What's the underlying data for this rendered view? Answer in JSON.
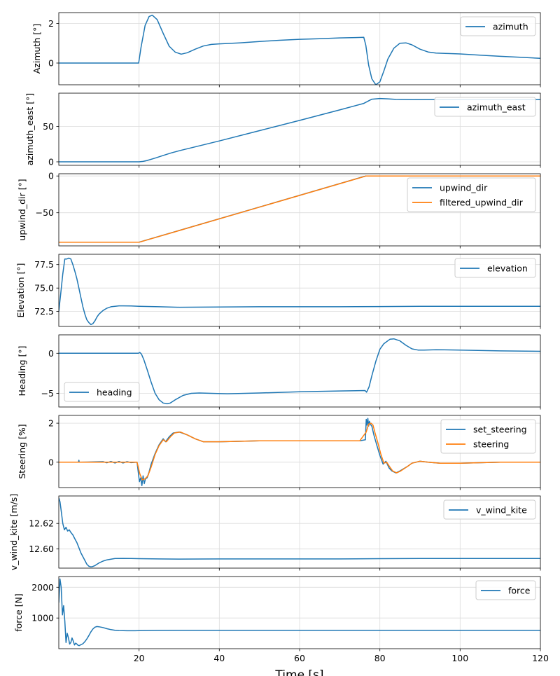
{
  "xlabel": "Time [s]",
  "x_ticks": [
    "20",
    "40",
    "60",
    "80",
    "100",
    "120"
  ],
  "chart_data": [
    {
      "type": "line",
      "ylabel": "Azimuth [°]",
      "xlim": [
        0,
        120
      ],
      "ylim": [
        -1.1,
        2.55
      ],
      "yticks": [
        0,
        2
      ],
      "ytick_labels": [
        "0",
        "2"
      ],
      "legend": "top-right",
      "grid": true,
      "series": [
        {
          "name": "azimuth",
          "color": "#1f77b4",
          "x": [
            0,
            19.9,
            20.5,
            21.5,
            22.5,
            23.3,
            24.5,
            26,
            27.5,
            29,
            30.5,
            32,
            34,
            36,
            38,
            40,
            45,
            50,
            55,
            60,
            65,
            70,
            74,
            76,
            76.5,
            77.2,
            78,
            79,
            80,
            81,
            82,
            83.5,
            85,
            86.5,
            88,
            90,
            92,
            94,
            97,
            100,
            105,
            110,
            115,
            120
          ],
          "y": [
            0,
            0,
            0.8,
            1.9,
            2.35,
            2.42,
            2.2,
            1.5,
            0.85,
            0.55,
            0.45,
            0.52,
            0.7,
            0.86,
            0.94,
            0.97,
            1.02,
            1.09,
            1.15,
            1.2,
            1.23,
            1.27,
            1.29,
            1.3,
            0.9,
            -0.1,
            -0.8,
            -1.1,
            -0.95,
            -0.4,
            0.2,
            0.75,
            1.0,
            1.02,
            0.92,
            0.7,
            0.56,
            0.5,
            0.48,
            0.46,
            0.4,
            0.34,
            0.29,
            0.24
          ]
        }
      ]
    },
    {
      "type": "line",
      "ylabel": "azimuth_east [°]",
      "xlim": [
        0,
        120
      ],
      "ylim": [
        -5,
        97
      ],
      "yticks": [
        0,
        50
      ],
      "ytick_labels": [
        "0",
        "50"
      ],
      "legend": "top-right",
      "grid": true,
      "series": [
        {
          "name": "azimuth_east",
          "color": "#1f77b4",
          "x": [
            0,
            20,
            21,
            22,
            24,
            26,
            28,
            30,
            35,
            40,
            50,
            60,
            70,
            76,
            78,
            80,
            82,
            84,
            88,
            100,
            120
          ],
          "y": [
            0,
            0,
            0.5,
            1.8,
            5.2,
            9,
            12.5,
            15.6,
            22.5,
            29.5,
            44,
            58.5,
            73.3,
            82.5,
            88.5,
            89.5,
            89,
            88.2,
            87.8,
            88,
            88
          ]
        }
      ]
    },
    {
      "type": "line",
      "ylabel": "upwind_dir [°]",
      "xlim": [
        0,
        120
      ],
      "ylim": [
        -95,
        3
      ],
      "yticks": [
        0,
        -50
      ],
      "ytick_labels": [
        "0",
        "−50"
      ],
      "legend": "top-right",
      "grid": true,
      "series": [
        {
          "name": "upwind_dir",
          "color": "#1f77b4",
          "x": [
            0,
            20,
            76.5,
            120
          ],
          "y": [
            -90,
            -90,
            0,
            0
          ]
        },
        {
          "name": "filtered_upwind_dir",
          "color": "#ff7f0e",
          "x": [
            0,
            20.1,
            76.6,
            120
          ],
          "y": [
            -90,
            -90,
            0,
            0
          ]
        }
      ]
    },
    {
      "type": "line",
      "ylabel": "Elevation [°]",
      "xlim": [
        0,
        120
      ],
      "ylim": [
        70.9,
        78.6
      ],
      "yticks": [
        72.5,
        75.0,
        77.5
      ],
      "ytick_labels": [
        "72.5",
        "75.0",
        "77.5"
      ],
      "legend": "top-right",
      "grid": true,
      "series": [
        {
          "name": "elevation",
          "color": "#1f77b4",
          "x": [
            0,
            0.5,
            1,
            1.5,
            2,
            2.5,
            3,
            3.5,
            4,
            4.5,
            5,
            5.5,
            6,
            6.5,
            7,
            7.5,
            8,
            8.5,
            9,
            9.5,
            10,
            11,
            12,
            13,
            14,
            15,
            16,
            18,
            20,
            25,
            30,
            40,
            50,
            60,
            70,
            80,
            90,
            100,
            110,
            120
          ],
          "y": [
            72.5,
            74.5,
            76.5,
            78.1,
            78.1,
            78.2,
            78.1,
            77.5,
            76.8,
            76,
            75.0,
            74.0,
            73.0,
            72.2,
            71.6,
            71.3,
            71.1,
            71.2,
            71.5,
            71.9,
            72.2,
            72.6,
            72.85,
            73.0,
            73.05,
            73.1,
            73.1,
            73.08,
            73.05,
            73.0,
            72.95,
            72.98,
            73.0,
            73.0,
            73.0,
            73.02,
            73.05,
            73.05,
            73.05,
            73.05
          ]
        }
      ]
    },
    {
      "type": "line",
      "ylabel": "Heading [°]",
      "xlim": [
        0,
        120
      ],
      "ylim": [
        -6.7,
        2.3
      ],
      "yticks": [
        0,
        -5
      ],
      "ytick_labels": [
        "0",
        "−5"
      ],
      "legend": "bottom-left",
      "grid": true,
      "series": [
        {
          "name": "heading",
          "color": "#1f77b4",
          "x": [
            0,
            19.8,
            20.2,
            20.6,
            21.2,
            22,
            23,
            24,
            25,
            26,
            27,
            27.8,
            29,
            31,
            33,
            35,
            38,
            42,
            50,
            60,
            70,
            76.3,
            76.7,
            77.3,
            78,
            79,
            80,
            81,
            82.5,
            83.5,
            85,
            86.5,
            88,
            89.5,
            91,
            94,
            100,
            110,
            120
          ],
          "y": [
            0,
            0,
            0.1,
            -0.1,
            -0.8,
            -2.0,
            -3.6,
            -5.0,
            -5.8,
            -6.2,
            -6.3,
            -6.2,
            -5.8,
            -5.25,
            -5.0,
            -4.95,
            -5.0,
            -5.05,
            -4.95,
            -4.8,
            -4.7,
            -4.65,
            -4.85,
            -4.2,
            -2.8,
            -1.0,
            0.5,
            1.2,
            1.75,
            1.8,
            1.55,
            1.0,
            0.55,
            0.4,
            0.4,
            0.45,
            0.4,
            0.3,
            0.25
          ]
        }
      ]
    },
    {
      "type": "line",
      "ylabel": "Steering [%]",
      "xlim": [
        0,
        120
      ],
      "ylim": [
        -1.3,
        2.4
      ],
      "yticks": [
        0,
        2
      ],
      "ytick_labels": [
        "0",
        "2"
      ],
      "legend": "top-right",
      "grid": true,
      "series": [
        {
          "name": "set_steering",
          "color": "#1f77b4",
          "x": [
            0,
            4.9,
            5.0,
            5.1,
            11,
            12,
            13,
            14,
            15,
            16,
            17,
            18,
            19.5,
            20.1,
            20.4,
            20.7,
            21,
            21.3,
            21.6,
            22,
            22.5,
            23,
            24,
            25,
            26,
            26.6,
            27.5,
            28.5,
            30,
            32,
            34,
            36,
            40,
            50,
            60,
            70,
            75,
            76.4,
            76.6,
            76.8,
            77.0,
            77.2,
            77.4,
            77.6,
            78,
            78.5,
            79.2,
            80,
            80.8,
            81.5,
            82.3,
            83,
            84,
            85,
            87,
            88,
            89,
            90,
            92,
            95,
            100,
            110,
            120
          ],
          "y": [
            0,
            0,
            0.1,
            0,
            0.03,
            -0.03,
            0.04,
            -0.04,
            0.04,
            -0.04,
            0.03,
            -0.02,
            0,
            -1.0,
            -0.8,
            -1.2,
            -0.7,
            -1.1,
            -0.85,
            -0.8,
            -0.5,
            -0.1,
            0.45,
            0.9,
            1.2,
            1.05,
            1.3,
            1.5,
            1.55,
            1.4,
            1.2,
            1.05,
            1.05,
            1.1,
            1.1,
            1.1,
            1.1,
            1.15,
            2.2,
            1.9,
            2.25,
            1.85,
            2.1,
            1.95,
            1.85,
            1.4,
            0.9,
            0.35,
            -0.1,
            0.05,
            -0.3,
            -0.45,
            -0.55,
            -0.45,
            -0.2,
            -0.05,
            0.0,
            0.05,
            0.0,
            -0.05,
            -0.05,
            0,
            0
          ]
        },
        {
          "name": "steering",
          "color": "#ff7f0e",
          "x": [
            0,
            19.5,
            20.2,
            20.8,
            21.5,
            22.2,
            23,
            24,
            25,
            26,
            26.8,
            27.8,
            28.8,
            30.3,
            32,
            34,
            36,
            40,
            50,
            60,
            70,
            75,
            76.6,
            77.2,
            77.8,
            78.3,
            78.8,
            79.5,
            80.2,
            81,
            81.7,
            82.5,
            83.2,
            84.2,
            85.2,
            87,
            88,
            89,
            90,
            92,
            95,
            100,
            110,
            120
          ],
          "y": [
            0,
            0,
            -0.6,
            -0.9,
            -0.85,
            -0.7,
            -0.25,
            0.4,
            0.85,
            1.15,
            1.05,
            1.3,
            1.5,
            1.55,
            1.4,
            1.2,
            1.05,
            1.05,
            1.1,
            1.1,
            1.1,
            1.1,
            1.55,
            1.95,
            2.0,
            1.9,
            1.5,
            1.0,
            0.45,
            -0.05,
            0.0,
            -0.25,
            -0.45,
            -0.55,
            -0.45,
            -0.2,
            -0.05,
            0.0,
            0.05,
            0.0,
            -0.05,
            -0.05,
            0,
            0
          ]
        }
      ]
    },
    {
      "type": "line",
      "ylabel": "v_wind_kite [m/s]",
      "xlim": [
        0,
        120
      ],
      "ylim": [
        12.585,
        12.6415
      ],
      "yticks": [
        12.6,
        12.62
      ],
      "ytick_labels": [
        "12.60",
        "12.62"
      ],
      "legend": "top-right",
      "grid": true,
      "series": [
        {
          "name": "v_wind_kite",
          "color": "#1f77b4",
          "x": [
            0,
            0.3,
            0.6,
            1,
            1.4,
            1.8,
            2.2,
            2.6,
            3,
            3.5,
            4,
            4.5,
            5,
            5.5,
            6,
            6.5,
            7,
            7.5,
            8,
            8.5,
            9,
            9.5,
            10,
            11,
            12,
            13,
            14,
            16,
            18,
            20,
            25,
            30,
            40,
            50,
            60,
            70,
            80,
            90,
            100,
            110,
            120
          ],
          "y": [
            12.64,
            12.637,
            12.63,
            12.62,
            12.615,
            12.617,
            12.614,
            12.615,
            12.613,
            12.611,
            12.608,
            12.605,
            12.601,
            12.597,
            12.594,
            12.591,
            12.588,
            12.5865,
            12.586,
            12.5863,
            12.587,
            12.588,
            12.589,
            12.5905,
            12.5915,
            12.592,
            12.5925,
            12.5926,
            12.5925,
            12.5924,
            12.5922,
            12.5921,
            12.5922,
            12.5922,
            12.5922,
            12.5922,
            12.5924,
            12.5925,
            12.5925,
            12.5925,
            12.5925
          ]
        }
      ]
    },
    {
      "type": "line",
      "ylabel": "force [N]",
      "xlim": [
        0,
        120
      ],
      "ylim": [
        0,
        2350
      ],
      "yticks": [
        1000,
        2000
      ],
      "ytick_labels": [
        "1000",
        "2000"
      ],
      "legend": "top-right",
      "grid": true,
      "series": [
        {
          "name": "force",
          "color": "#1f77b4",
          "x": [
            0,
            0.3,
            0.6,
            0.9,
            1.2,
            1.5,
            1.8,
            2.1,
            2.4,
            2.7,
            3.0,
            3.3,
            3.6,
            3.9,
            4.2,
            4.5,
            4.8,
            5.1,
            5.5,
            6,
            6.5,
            7,
            7.5,
            8,
            8.5,
            9,
            9.5,
            10,
            11,
            12,
            13,
            14,
            15,
            17,
            19,
            21,
            25,
            30,
            40,
            50,
            60,
            70,
            80,
            90,
            100,
            110,
            120
          ],
          "y": [
            1500,
            2270,
            2000,
            1100,
            1400,
            900,
            200,
            500,
            350,
            150,
            200,
            350,
            250,
            120,
            180,
            150,
            110,
            100,
            130,
            160,
            230,
            320,
            430,
            550,
            640,
            700,
            720,
            715,
            690,
            650,
            620,
            600,
            590,
            585,
            585,
            590,
            595,
            600,
            600,
            600,
            600,
            600,
            600,
            600,
            600,
            600,
            600
          ]
        }
      ]
    }
  ]
}
